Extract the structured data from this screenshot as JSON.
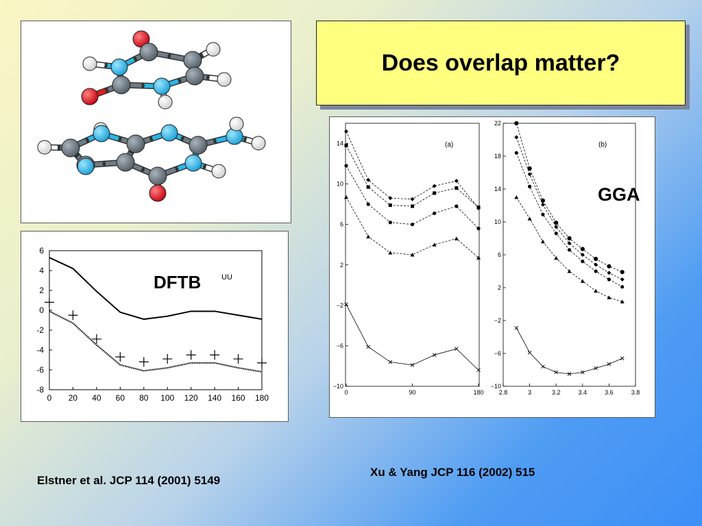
{
  "title": "Does overlap matter?",
  "captions": {
    "left": "Elstner et al. JCP 114  (2001) 5149",
    "right": "Xu & Yang JCP 116 (2002) 515"
  },
  "molecule": {
    "atom_colors": {
      "oxygen": "#e31a1c",
      "nitrogen": "#29b6e8",
      "carbon": "#6f7b85",
      "hydrogen": "#ffffff"
    }
  },
  "chart_data": [
    {
      "type": "line",
      "annotation": "DFTB",
      "annotation_sup": "UU",
      "xlim": [
        0,
        180
      ],
      "ylim": [
        -8,
        6
      ],
      "xticks": [
        "0",
        "20",
        "40",
        "60",
        "80",
        "100",
        "120",
        "140",
        "160",
        "180"
      ],
      "yticks": [
        "6",
        "4",
        "2",
        "0",
        "-2",
        "-4",
        "-6",
        "-8"
      ],
      "series": [
        {
          "style": "solid",
          "x": [
            0,
            20,
            40,
            60,
            80,
            100,
            120,
            140,
            160,
            180
          ],
          "values": [
            5.3,
            4.2,
            1.9,
            -0.2,
            -0.9,
            -0.6,
            -0.1,
            -0.1,
            -0.5,
            -0.9
          ]
        },
        {
          "style": "dotted",
          "x": [
            0,
            20,
            40,
            60,
            80,
            100,
            120,
            140,
            160,
            180
          ],
          "values": [
            -0.1,
            -1.3,
            -3.5,
            -5.5,
            -6.1,
            -5.8,
            -5.3,
            -5.3,
            -5.8,
            -6.2
          ]
        },
        {
          "style": "plus",
          "x": [
            0,
            20,
            40,
            60,
            80,
            100,
            120,
            140,
            160,
            180
          ],
          "values": [
            0.8,
            -0.5,
            -2.9,
            -4.7,
            -5.2,
            -4.9,
            -4.5,
            -4.5,
            -4.9,
            -5.3
          ]
        }
      ]
    },
    {
      "type": "line",
      "panel_label": "(a)",
      "xlim": [
        0,
        180
      ],
      "ylim": [
        -10,
        16
      ],
      "xticks": [
        "0",
        "90",
        "180"
      ],
      "yticks": [
        "14",
        "10",
        "6",
        "2",
        "−2",
        "−6",
        "−10"
      ],
      "series": [
        {
          "marker": "diamond",
          "x": [
            0,
            30,
            60,
            90,
            120,
            150,
            180
          ],
          "values": [
            15.2,
            10.4,
            8.6,
            8.5,
            9.8,
            10.3,
            7.6
          ]
        },
        {
          "marker": "square",
          "x": [
            0,
            30,
            60,
            90,
            120,
            150,
            180
          ],
          "values": [
            13.8,
            9.7,
            7.9,
            7.8,
            9.1,
            9.6,
            7.7
          ]
        },
        {
          "marker": "circle",
          "x": [
            0,
            30,
            60,
            90,
            120,
            150,
            180
          ],
          "values": [
            11.8,
            8.0,
            6.2,
            6.0,
            7.1,
            7.8,
            5.6
          ]
        },
        {
          "marker": "triangle",
          "x": [
            0,
            30,
            60,
            90,
            120,
            150,
            180
          ],
          "values": [
            8.7,
            4.8,
            3.2,
            3.0,
            4.0,
            4.6,
            2.7
          ]
        },
        {
          "marker": "cross",
          "x": [
            0,
            30,
            60,
            90,
            120,
            150,
            180
          ],
          "values": [
            -1.9,
            -6.1,
            -7.6,
            -7.9,
            -6.9,
            -6.3,
            -8.4
          ]
        }
      ]
    },
    {
      "type": "line",
      "panel_label": "(b)",
      "xlim": [
        2.8,
        3.8
      ],
      "ylim": [
        -10,
        22
      ],
      "xticks": [
        "2.8",
        "3",
        "3.2",
        "3.4",
        "3.6",
        "3.8"
      ],
      "yticks": [
        "22",
        "18",
        "14",
        "10",
        "6",
        "2",
        "−2",
        "−6",
        "−10"
      ],
      "annotation": "GGA",
      "series": [
        {
          "marker": "circle-open",
          "x": [
            2.9,
            3.0,
            3.1,
            3.2,
            3.3,
            3.4,
            3.5,
            3.6,
            3.7
          ],
          "values": [
            22.0,
            16.5,
            12.6,
            9.9,
            8.0,
            6.7,
            5.5,
            4.6,
            3.9
          ]
        },
        {
          "marker": "diamond",
          "x": [
            2.9,
            3.0,
            3.1,
            3.2,
            3.3,
            3.4,
            3.5,
            3.6,
            3.7
          ],
          "values": [
            20.3,
            15.8,
            12.1,
            9.4,
            7.4,
            6.0,
            4.8,
            3.8,
            3.0
          ]
        },
        {
          "marker": "circle",
          "x": [
            2.9,
            3.0,
            3.1,
            3.2,
            3.3,
            3.4,
            3.5,
            3.6,
            3.7
          ],
          "values": [
            18.4,
            14.3,
            10.9,
            8.6,
            6.6,
            5.2,
            4.0,
            3.0,
            2.1
          ]
        },
        {
          "marker": "triangle",
          "x": [
            2.9,
            3.0,
            3.1,
            3.2,
            3.3,
            3.4,
            3.5,
            3.6,
            3.7
          ],
          "values": [
            13.0,
            10.4,
            7.6,
            5.6,
            4.0,
            2.8,
            1.6,
            0.8,
            0.3
          ]
        },
        {
          "marker": "cross",
          "x": [
            2.9,
            3.0,
            3.1,
            3.2,
            3.3,
            3.4,
            3.5,
            3.6,
            3.7
          ],
          "values": [
            -2.9,
            -5.9,
            -7.6,
            -8.3,
            -8.5,
            -8.3,
            -7.8,
            -7.3,
            -6.6
          ]
        }
      ]
    }
  ]
}
